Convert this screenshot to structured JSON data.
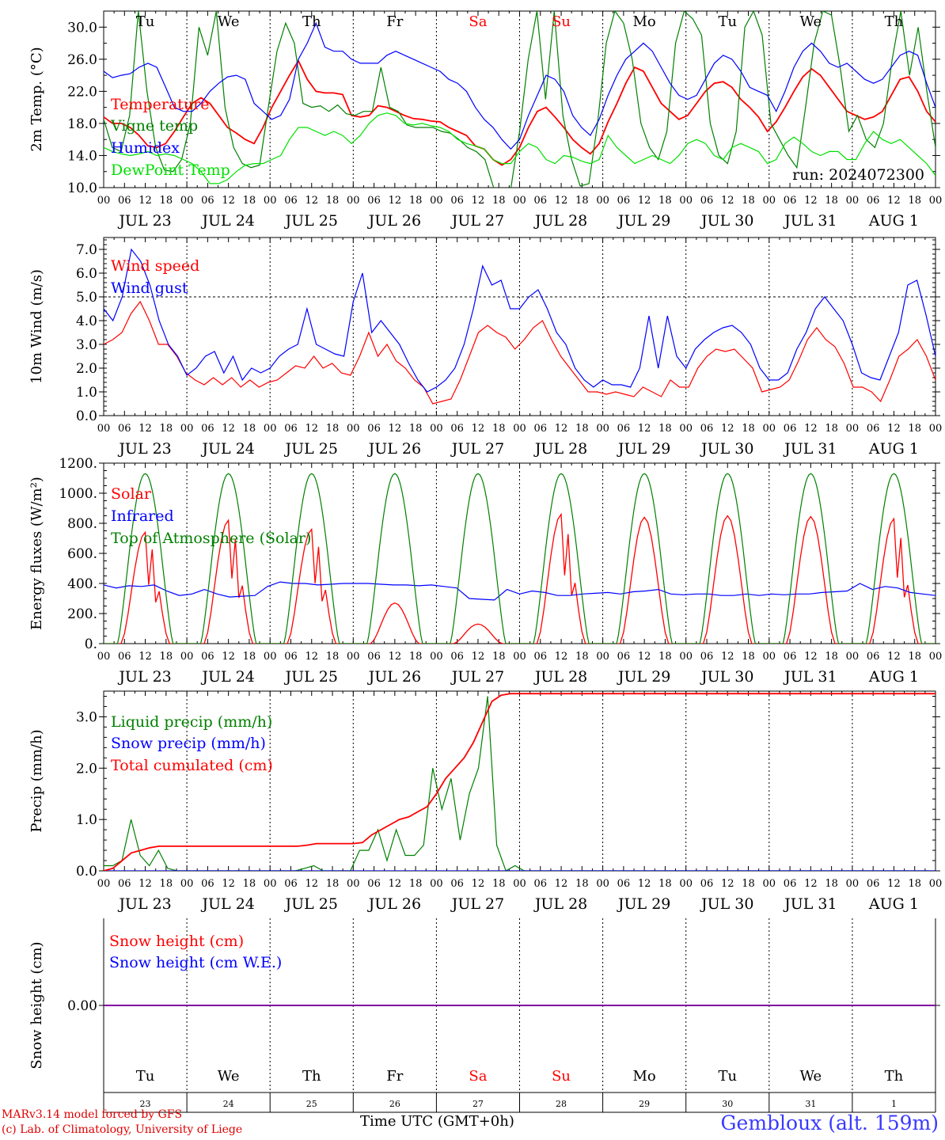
{
  "run_label": "run: 2024072300",
  "credit_line1": "MARv3.14 model forced by GFS",
  "credit_line2": "(c) Lab. of Climatology, University of Liege",
  "xaxis_title": "Time UTC (GMT+0h)",
  "station": "Gembloux (alt. 159m)",
  "day_names": [
    "Tu",
    "We",
    "Th",
    "Fr",
    "Sa",
    "Su",
    "Mo",
    "Tu",
    "We",
    "Th"
  ],
  "weekend_days": [
    4,
    5
  ],
  "date_labels": [
    "JUL 23",
    "JUL 24",
    "JUL 25",
    "JUL 26",
    "JUL 27",
    "JUL 28",
    "JUL 29",
    "JUL 30",
    "JUL 31",
    "AUG  1"
  ],
  "day_numbers": [
    "23",
    "24",
    "25",
    "26",
    "27",
    "28",
    "29",
    "30",
    "31",
    "1"
  ],
  "hour_labels": [
    "00",
    "06",
    "12",
    "18"
  ],
  "colors": {
    "temperature": "#ff0000",
    "vigne": "#008000",
    "humidex": "#0000ff",
    "dewpoint": "#00e000",
    "wind_speed": "#ff0000",
    "wind_gust": "#0000ff",
    "solar": "#ff0000",
    "infrared": "#0000ff",
    "toa": "#008000",
    "liquid": "#008000",
    "snow_precip": "#0000ff",
    "cumulated": "#ff0000",
    "snow_cm": "#ff0000",
    "snow_we": "#0000ff",
    "weekend": "#ff0000"
  },
  "chart_data": [
    {
      "type": "line",
      "panel": "temperature",
      "ylabel": "2m Temp. (°C)",
      "ylim": [
        10,
        32
      ],
      "yticks": [
        "10.0",
        "14.0",
        "18.0",
        "22.0",
        "26.0",
        "30.0"
      ],
      "ytick_values": [
        10,
        14,
        18,
        22,
        26,
        30
      ],
      "x": "hours since JUL 23 00 UTC, 3-hourly",
      "series": [
        {
          "name": "Temperature",
          "color": "#ff0000",
          "values": [
            18.8,
            18,
            18,
            17.5,
            16.5,
            15.2,
            15,
            15.5,
            17,
            18.8,
            20.5,
            21.2,
            20.5,
            19,
            17.5,
            16.8,
            16,
            15.5,
            17.5,
            20,
            22,
            24,
            25.8,
            23.5,
            22,
            21.8,
            21.8,
            21.6,
            19,
            18.8,
            19,
            20.2,
            20,
            19.5,
            19,
            18.6,
            18.5,
            18.3,
            18.2,
            17.5,
            17,
            16.5,
            15.2,
            14.8,
            13.5,
            12.8,
            13.5,
            15,
            17.5,
            19.5,
            20,
            18.8,
            17.5,
            16,
            15,
            14.2,
            15.5,
            18.2,
            20.5,
            23,
            25,
            24.5,
            22.5,
            20.5,
            19.5,
            18.5,
            19,
            20.5,
            22,
            23,
            23.2,
            22.5,
            21,
            20,
            18.8,
            17,
            18.2,
            20,
            22,
            23.8,
            24.8,
            24,
            22.5,
            21,
            19.5,
            19,
            18.5,
            18.8,
            19.5,
            21.5,
            23.5,
            23.8,
            22,
            19.5,
            18.2
          ]
        },
        {
          "name": "Vigne temp",
          "color": "#008000",
          "values": [
            18.5,
            15,
            14.5,
            19,
            32,
            22,
            15,
            12.2,
            12,
            13.5,
            18,
            30,
            26.5,
            32,
            20,
            15,
            13,
            12.5,
            12.8,
            20,
            27,
            30.5,
            28,
            20.5,
            20,
            20.2,
            19.5,
            20.3,
            19.2,
            19,
            19.5,
            19.5,
            25,
            20,
            19.5,
            17.8,
            17.5,
            17.5,
            17.5,
            17,
            16.8,
            16,
            15,
            14.5,
            13.5,
            10,
            9,
            10,
            17,
            26,
            32,
            21,
            32,
            19,
            13.5,
            10.2,
            10.5,
            18,
            28,
            32,
            30.5,
            26,
            18,
            15,
            13.5,
            17,
            28,
            32,
            31,
            29,
            18,
            14,
            13,
            17,
            30,
            32,
            29,
            18,
            16,
            14,
            12.5,
            20,
            28,
            32,
            31.5,
            25,
            17,
            19,
            16,
            15,
            18,
            26,
            32,
            24,
            30,
            22,
            15
          ]
        },
        {
          "name": "Humidex",
          "color": "#0000ff",
          "values": [
            24.5,
            23.7,
            24,
            24.2,
            25,
            25.5,
            25,
            22.5,
            20,
            19.5,
            19.5,
            20.5,
            22,
            23,
            23.8,
            24,
            23.5,
            20.5,
            19.5,
            18.5,
            19,
            21,
            26,
            28,
            30.5,
            27.5,
            27,
            27,
            26,
            25.5,
            25.5,
            25.5,
            26.5,
            27,
            26.5,
            26,
            25.5,
            25,
            24.5,
            23.5,
            23,
            22,
            20,
            18.5,
            17.5,
            16,
            14.8,
            16,
            19,
            21.5,
            24,
            23.5,
            22,
            19,
            17.5,
            16.5,
            18.5,
            21.5,
            24,
            26,
            27,
            28,
            27,
            25,
            23,
            21.5,
            21,
            21.5,
            23.5,
            25.5,
            26.5,
            26,
            24.5,
            22.5,
            22,
            21.5,
            19.5,
            22,
            25,
            27,
            28,
            27,
            25.5,
            25,
            25.5,
            24.5,
            23.5,
            23,
            23.5,
            25,
            26.5,
            27,
            26.5,
            23,
            20
          ]
        },
        {
          "name": "DewPoint Temp",
          "color": "#00e000",
          "values": [
            15,
            14.5,
            14.2,
            14,
            14.2,
            14.5,
            14,
            14.2,
            14,
            13.5,
            13,
            12,
            10.5,
            10.5,
            11,
            12,
            12.8,
            13,
            13,
            13.5,
            14,
            16,
            17.5,
            17.5,
            17,
            16.5,
            17,
            16.5,
            15.5,
            16.5,
            18,
            19,
            19.3,
            19,
            18,
            17.8,
            18,
            17.7,
            17.5,
            17,
            16,
            15.5,
            15.2,
            14.8,
            13.5,
            13,
            13,
            14.5,
            15.5,
            15,
            13.5,
            13,
            14,
            13.8,
            13.3,
            13,
            13.5,
            16.5,
            15,
            14,
            13,
            13.5,
            14,
            13.5,
            13,
            14,
            15.5,
            16,
            15.5,
            14,
            13.5,
            15,
            15.5,
            15,
            14.5,
            13,
            13.5,
            15.5,
            16.3,
            15.5,
            14.5,
            14,
            14.5,
            14.5,
            13.5,
            13.5,
            15.5,
            17,
            16,
            15.5,
            16,
            15,
            14,
            13,
            11.5
          ]
        }
      ]
    },
    {
      "type": "line",
      "panel": "wind",
      "ylabel": "10m Wind (m/s)",
      "ylim": [
        0,
        7.5
      ],
      "yticks": [
        "0.0",
        "1.0",
        "2.0",
        "3.0",
        "4.0",
        "5.0",
        "6.0",
        "7.0"
      ],
      "ytick_values": [
        0,
        1,
        2,
        3,
        4,
        5,
        6,
        7
      ],
      "hline": 5,
      "series": [
        {
          "name": "Wind speed",
          "color": "#ff0000",
          "values": [
            3,
            3.2,
            3.5,
            4.3,
            4.8,
            4,
            3,
            3,
            2.5,
            1.8,
            1.5,
            1.3,
            1.6,
            1.3,
            1.6,
            1.2,
            1.5,
            1.2,
            1.4,
            1.5,
            1.8,
            2.1,
            2,
            2.5,
            2,
            2.2,
            1.8,
            1.7,
            2.5,
            3.5,
            2.5,
            3,
            2.3,
            2,
            1.5,
            1.2,
            0.5,
            0.6,
            0.7,
            1.5,
            2.5,
            3.5,
            3.8,
            3.5,
            3.3,
            2.8,
            3.2,
            3.7,
            4,
            3.2,
            2.5,
            2,
            1.5,
            1,
            1,
            0.9,
            1,
            0.9,
            0.8,
            1.2,
            1,
            0.8,
            1.5,
            1.2,
            1.2,
            2,
            2.5,
            2.8,
            2.7,
            2.8,
            2.4,
            2,
            1,
            1.1,
            1.2,
            1.5,
            2.3,
            3.2,
            3.7,
            3.2,
            2.9,
            2.2,
            1.2,
            1.2,
            1,
            0.6,
            1.5,
            2.5,
            2.8,
            3.2,
            2.5,
            1.5
          ]
        },
        {
          "name": "Wind gust",
          "color": "#0000ff",
          "values": [
            4.5,
            4,
            5,
            7,
            6.5,
            5.5,
            4,
            3,
            2.5,
            1.7,
            2,
            2.5,
            2.7,
            1.8,
            2.5,
            1.5,
            2,
            1.8,
            2,
            2.5,
            2.8,
            3,
            4.5,
            3,
            2.8,
            2.6,
            2.5,
            4.8,
            6,
            3.5,
            4,
            3.5,
            3,
            2.2,
            1.5,
            1,
            1.2,
            1.5,
            2,
            3,
            4.5,
            6.3,
            5.5,
            5.7,
            4.5,
            4.5,
            5,
            5.3,
            4.5,
            3.5,
            3,
            2,
            1.5,
            1.2,
            1.5,
            1.3,
            1.3,
            1.2,
            2,
            4.2,
            2,
            4.2,
            2.5,
            2,
            2.8,
            3.2,
            3.5,
            3.7,
            3.8,
            3.5,
            3,
            2,
            1.5,
            1.5,
            1.8,
            2.8,
            3.5,
            4.5,
            5,
            4.5,
            4,
            3,
            1.8,
            1.6,
            1.5,
            2.5,
            3.5,
            5.5,
            5.7,
            4.2,
            2.5
          ]
        }
      ]
    },
    {
      "type": "line",
      "panel": "energy",
      "ylabel": "Energy fluxes (W/m²)",
      "ylim": [
        0,
        1200
      ],
      "yticks": [
        "0.",
        "200.",
        "400.",
        "600.",
        "800.",
        "1000.",
        "1200."
      ],
      "ytick_values": [
        0,
        200,
        400,
        600,
        800,
        1000,
        1200
      ],
      "series": [
        {
          "name": "Solar",
          "color": "#ff0000",
          "peaks": [
            740,
            820,
            760,
            270,
            130,
            860,
            840,
            850,
            845,
            830
          ]
        },
        {
          "name": "Infrared",
          "color": "#0000ff",
          "values": [
            390,
            370,
            385,
            380,
            390,
            350,
            320,
            330,
            360,
            330,
            310,
            315,
            320,
            380,
            410,
            400,
            400,
            390,
            395,
            400,
            400,
            400,
            395,
            390,
            390,
            385,
            390,
            380,
            370,
            300,
            295,
            290,
            360,
            330,
            350,
            340,
            320,
            320,
            330,
            335,
            340,
            330,
            345,
            350,
            360,
            330,
            325,
            330,
            330,
            320,
            320,
            330,
            320,
            330,
            325,
            330,
            330,
            340,
            345,
            350,
            400,
            360,
            380,
            370,
            340,
            330,
            320
          ]
        },
        {
          "name": "Top of Atmosphere (Solar)",
          "color": "#008000",
          "peak": 1130
        }
      ]
    },
    {
      "type": "line",
      "panel": "precip",
      "ylabel": "Precip (mm/h)",
      "ylim": [
        0,
        3.5
      ],
      "yticks": [
        "0.0",
        "1.0",
        "2.0",
        "3.0"
      ],
      "ytick_values": [
        0,
        1,
        2,
        3
      ],
      "series": [
        {
          "name": "Liquid precip (mm/h)",
          "color": "#008000",
          "values": [
            0.1,
            0.1,
            0.2,
            1.0,
            0.3,
            0.1,
            0.4,
            0.05,
            0,
            0,
            0,
            0,
            0,
            0,
            0,
            0,
            0,
            0,
            0,
            0,
            0,
            0,
            0.05,
            0.1,
            0,
            0,
            0,
            0,
            0.4,
            0.4,
            0.8,
            0.2,
            0.8,
            0.3,
            0.3,
            0.5,
            2,
            1.2,
            1.8,
            0.6,
            1.5,
            2,
            3.4,
            0.5,
            0,
            0.1,
            0,
            0,
            0,
            0,
            0,
            0,
            0,
            0,
            0,
            0,
            0,
            0,
            0,
            0,
            0,
            0,
            0,
            0,
            0,
            0,
            0,
            0,
            0,
            0,
            0,
            0,
            0,
            0,
            0,
            0,
            0,
            0,
            0,
            0,
            0,
            0,
            0,
            0,
            0,
            0,
            0,
            0,
            0,
            0,
            0,
            0
          ]
        },
        {
          "name": "Snow precip (mm/h)",
          "color": "#0000ff",
          "values": [
            0
          ]
        },
        {
          "name": "Total cumulated (cm)",
          "color": "#ff0000",
          "values": [
            0,
            0.05,
            0.2,
            0.35,
            0.4,
            0.45,
            0.48,
            0.48,
            0.48,
            0.48,
            0.48,
            0.48,
            0.48,
            0.48,
            0.48,
            0.48,
            0.48,
            0.48,
            0.48,
            0.48,
            0.48,
            0.48,
            0.5,
            0.53,
            0.53,
            0.53,
            0.53,
            0.53,
            0.55,
            0.7,
            0.8,
            0.9,
            1.0,
            1.05,
            1.15,
            1.25,
            1.5,
            1.8,
            2.0,
            2.2,
            2.5,
            2.9,
            3.3,
            3.42,
            3.45,
            3.45,
            3.45,
            3.45,
            3.45,
            3.45,
            3.45,
            3.45,
            3.45,
            3.45,
            3.45,
            3.45,
            3.45,
            3.45,
            3.45,
            3.45,
            3.45,
            3.45,
            3.45,
            3.45,
            3.45,
            3.45,
            3.45,
            3.45,
            3.45,
            3.45,
            3.45,
            3.45,
            3.45,
            3.45,
            3.45,
            3.45,
            3.45,
            3.45,
            3.45,
            3.45,
            3.45,
            3.45,
            3.45,
            3.45,
            3.45,
            3.45,
            3.45,
            3.45,
            3.45,
            3.45,
            3.45
          ]
        }
      ]
    },
    {
      "type": "line",
      "panel": "snow",
      "ylabel": "Snow height (cm)",
      "yticks": [
        "0.00"
      ],
      "ytick_values": [
        0
      ],
      "series": [
        {
          "name": "Snow height (cm)",
          "color": "#ff0000",
          "values": [
            0
          ]
        },
        {
          "name": "Snow height (cm W.E.)",
          "color": "#0000ff",
          "values": [
            0
          ]
        }
      ]
    }
  ]
}
